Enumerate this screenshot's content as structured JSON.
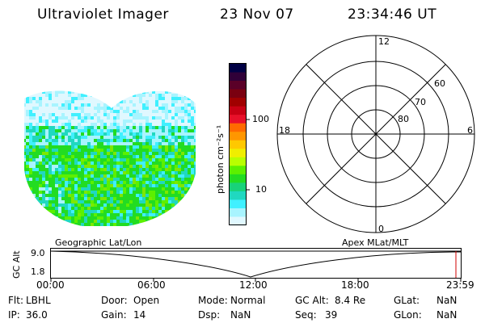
{
  "header": {
    "title": "Ultraviolet Imager",
    "date": "23 Nov 07",
    "time": "23:34:46 UT"
  },
  "colorbar": {
    "unit_label": "photon cm⁻²s⁻¹",
    "ticks": [
      "100",
      "10"
    ],
    "colors": [
      "#000044",
      "#300038",
      "#5a0028",
      "#7a0010",
      "#a00000",
      "#c80014",
      "#e8102a",
      "#ff6a00",
      "#ff9600",
      "#ffc800",
      "#f0ee00",
      "#b8ff00",
      "#5cf000",
      "#22dc22",
      "#18d27a",
      "#20d8c0",
      "#40f0ff",
      "#a8f4ff",
      "#e0f8ff"
    ]
  },
  "polar_grid": {
    "labels": [
      "12",
      "18",
      "6",
      "0",
      "60",
      "70",
      "80"
    ]
  },
  "timeline": {
    "left_title": "Geographic Lat/Lon",
    "right_title": "Apex MLat/MLT",
    "y_axis_label": "GC Alt",
    "y_max_label": "9.0",
    "y_min_label": "1.8",
    "x_ticks": [
      "00:00",
      "06:00",
      "12:00",
      "18:00",
      "23:59"
    ]
  },
  "info": {
    "row1": [
      {
        "label": "Flt:",
        "value": "LBHL"
      },
      {
        "label": "Door:",
        "value": "Open"
      },
      {
        "label": "Mode:",
        "value": "Normal"
      },
      {
        "label": "GC Alt:",
        "value": "8.4 Re"
      },
      {
        "label": "GLat:",
        "value": "NaN"
      }
    ],
    "row2": [
      {
        "label": "IP:",
        "value": "36.0"
      },
      {
        "label": "Gain:",
        "value": "14"
      },
      {
        "label": "Dsp:",
        "value": "NaN"
      },
      {
        "label": "Seq:",
        "value": "39"
      },
      {
        "label": "GLon:",
        "value": "NaN"
      }
    ]
  }
}
